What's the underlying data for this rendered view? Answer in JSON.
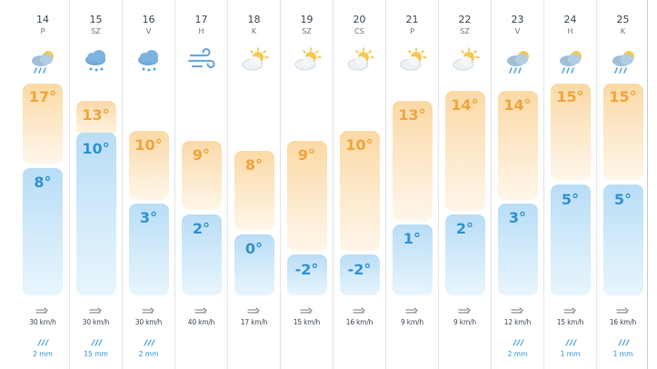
{
  "days": [
    {
      "day": "14",
      "abbr": "P",
      "icon": "rain-sun-icon",
      "high": "17°",
      "low": "8°",
      "wind": "30 km/h",
      "rain": "2 mm"
    },
    {
      "day": "15",
      "abbr": "SZ",
      "icon": "rain-cloud-icon",
      "high": "13°",
      "low": "10°",
      "wind": "30 km/h",
      "rain": "15 mm"
    },
    {
      "day": "16",
      "abbr": "V",
      "icon": "rain-cloud-icon",
      "high": "10°",
      "low": "3°",
      "wind": "30 km/h",
      "rain": "2 mm"
    },
    {
      "day": "17",
      "abbr": "H",
      "icon": "wind-icon",
      "high": "9°",
      "low": "2°",
      "wind": "40 km/h",
      "rain": ""
    },
    {
      "day": "18",
      "abbr": "K",
      "icon": "partly-cloudy-icon",
      "high": "8°",
      "low": "0°",
      "wind": "17 km/h",
      "rain": ""
    },
    {
      "day": "19",
      "abbr": "SZ",
      "icon": "partly-cloudy-icon",
      "high": "9°",
      "low": "-2°",
      "wind": "15 km/h",
      "rain": ""
    },
    {
      "day": "20",
      "abbr": "CS",
      "icon": "partly-cloudy-icon",
      "high": "10°",
      "low": "-2°",
      "wind": "16 km/h",
      "rain": ""
    },
    {
      "day": "21",
      "abbr": "P",
      "icon": "partly-cloudy-icon",
      "high": "13°",
      "low": "1°",
      "wind": "9 km/h",
      "rain": ""
    },
    {
      "day": "22",
      "abbr": "SZ",
      "icon": "partly-cloudy-icon",
      "high": "14°",
      "low": "2°",
      "wind": "9 km/h",
      "rain": ""
    },
    {
      "day": "23",
      "abbr": "V",
      "icon": "rain-sun-icon",
      "high": "14°",
      "low": "3°",
      "wind": "12 km/h",
      "rain": "2 mm"
    },
    {
      "day": "24",
      "abbr": "H",
      "icon": "rain-sun-icon",
      "high": "15°",
      "low": "5°",
      "wind": "15 km/h",
      "rain": "1 mm"
    },
    {
      "day": "25",
      "abbr": "K",
      "icon": "rain-sun-icon",
      "high": "15°",
      "low": "5°",
      "wind": "16 km/h",
      "rain": "1 mm"
    }
  ],
  "colors": {
    "high": "#f2a43a",
    "low": "#2f92d4",
    "high_bar": "#fde4bd",
    "low_bar": "#c9e6f9"
  }
}
